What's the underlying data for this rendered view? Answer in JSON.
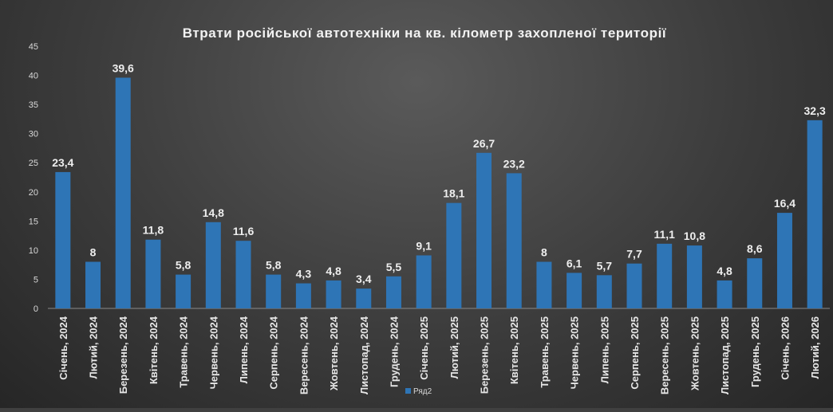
{
  "chart_data": {
    "type": "bar",
    "title": "Втрати російської автотехніки на кв. кілометр захопленої території",
    "categories": [
      "Січень, 2024",
      "Лютий, 2024",
      "Березень, 2024",
      "Квітень, 2024",
      "Травень, 2024",
      "Червень, 2024",
      "Липень, 2024",
      "Серпень, 2024",
      "Вересень, 2024",
      "Жовтень, 2024",
      "Листопад, 2024",
      "Грудень, 2024",
      "Січень, 2025",
      "Лютий, 2025",
      "Березень, 2025",
      "Квітень, 2025",
      "Травень, 2025",
      "Червень, 2025",
      "Липень, 2025",
      "Серпень, 2025",
      "Вересень, 2025",
      "Жовтень, 2025",
      "Листопад, 2025",
      "Грудень, 2025",
      "Січень, 2026",
      "Лютий, 2026"
    ],
    "series": [
      {
        "name": "Ряд2",
        "values": [
          23.4,
          8,
          39.6,
          11.8,
          5.8,
          14.8,
          11.6,
          5.8,
          4.3,
          4.8,
          3.4,
          5.5,
          9.1,
          18.1,
          26.7,
          23.2,
          8,
          6.1,
          5.7,
          7.7,
          11.1,
          10.8,
          4.8,
          8.6,
          16.4,
          32.3
        ],
        "labels": [
          "23,4",
          "8",
          "39,6",
          "11,8",
          "5,8",
          "14,8",
          "11,6",
          "5,8",
          "4,3",
          "4,8",
          "3,4",
          "5,5",
          "9,1",
          "18,1",
          "26,7",
          "23,2",
          "8",
          "6,1",
          "5,7",
          "7,7",
          "11,1",
          "10,8",
          "4,8",
          "8,6",
          "16,4",
          "32,3"
        ]
      }
    ],
    "ylim": [
      0,
      45
    ],
    "yticks": [
      "0",
      "5",
      "10",
      "15",
      "20",
      "25",
      "30",
      "35",
      "40",
      "45"
    ],
    "grid": false,
    "legend_position": "bottom-center",
    "colors": {
      "bar": "#2e75b6",
      "background": "#404040",
      "text": "#e6e6e6"
    }
  }
}
